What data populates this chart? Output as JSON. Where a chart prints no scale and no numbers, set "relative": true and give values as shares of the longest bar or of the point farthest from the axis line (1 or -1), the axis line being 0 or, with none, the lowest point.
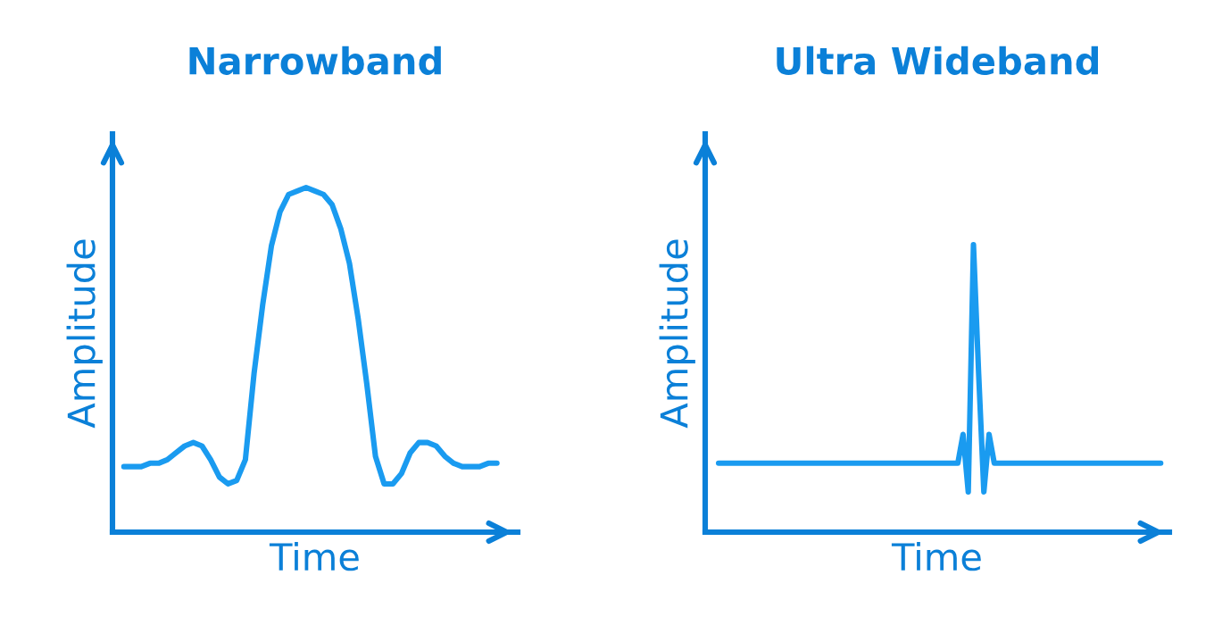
{
  "chart_data": [
    {
      "type": "line",
      "title": "Narrowband",
      "xlabel": "Time",
      "ylabel": "Amplitude",
      "relative": true,
      "categories": [
        null,
        null,
        null,
        null,
        null,
        null,
        null,
        null,
        null,
        null,
        null,
        null,
        null,
        null,
        null,
        null,
        null,
        null,
        null,
        null,
        null,
        null,
        null,
        null,
        null,
        null,
        null,
        null,
        null,
        null,
        null,
        null,
        null,
        null,
        null,
        null,
        null,
        null,
        null,
        null,
        null,
        null,
        null,
        null
      ],
      "series": [
        {
          "color": "#1a9bf0",
          "values": [
            0.19,
            0.19,
            0.19,
            0.2,
            0.2,
            0.21,
            0.23,
            0.25,
            0.26,
            0.25,
            0.21,
            0.16,
            0.14,
            0.15,
            0.21,
            0.46,
            0.66,
            0.83,
            0.93,
            0.98,
            0.99,
            1.0,
            0.99,
            0.98,
            0.95,
            0.88,
            0.78,
            0.62,
            0.43,
            0.22,
            0.14,
            0.14,
            0.17,
            0.23,
            0.26,
            0.26,
            0.25,
            0.22,
            0.2,
            0.19,
            0.19,
            0.19,
            0.2,
            0.2
          ]
        }
      ]
    },
    {
      "type": "line",
      "title": "Ultra Wideband",
      "xlabel": "Time",
      "ylabel": "Amplitude",
      "relative": true,
      "categories": [
        null,
        null,
        null,
        null,
        null,
        null,
        null,
        null,
        null,
        null,
        null,
        null,
        null,
        null,
        null,
        null,
        null,
        null,
        null,
        null,
        null,
        null,
        null,
        null,
        null,
        null,
        null,
        null,
        null,
        null,
        null,
        null,
        null,
        null,
        null,
        null,
        null,
        null,
        null,
        null,
        null,
        null,
        null,
        null,
        null,
        null,
        null,
        null,
        null,
        null,
        null,
        null,
        null,
        null,
        null,
        null,
        null,
        null,
        null,
        null,
        null,
        null,
        null,
        null,
        null,
        null,
        null,
        null,
        null,
        null,
        null,
        null,
        null,
        null,
        null,
        null,
        null,
        null,
        null,
        null,
        null,
        null,
        null,
        null,
        null,
        null
      ],
      "series": [
        {
          "color": "#1a9bf0",
          "values": [
            0.24,
            0.24,
            0.24,
            0.24,
            0.24,
            0.24,
            0.24,
            0.24,
            0.24,
            0.24,
            0.24,
            0.24,
            0.24,
            0.24,
            0.24,
            0.24,
            0.24,
            0.24,
            0.24,
            0.24,
            0.24,
            0.24,
            0.24,
            0.24,
            0.24,
            0.24,
            0.24,
            0.24,
            0.24,
            0.24,
            0.24,
            0.24,
            0.24,
            0.24,
            0.24,
            0.24,
            0.24,
            0.24,
            0.24,
            0.24,
            0.24,
            0.24,
            0.24,
            0.24,
            0.24,
            0.24,
            0.24,
            0.34,
            0.14,
            1.0,
            0.55,
            0.14,
            0.34,
            0.24,
            0.24,
            0.24,
            0.24,
            0.24,
            0.24,
            0.24,
            0.24,
            0.24,
            0.24,
            0.24,
            0.24,
            0.24,
            0.24,
            0.24,
            0.24,
            0.24,
            0.24,
            0.24,
            0.24,
            0.24,
            0.24,
            0.24,
            0.24,
            0.24,
            0.24,
            0.24,
            0.24,
            0.24,
            0.24,
            0.24,
            0.24,
            0.24
          ]
        }
      ]
    }
  ]
}
